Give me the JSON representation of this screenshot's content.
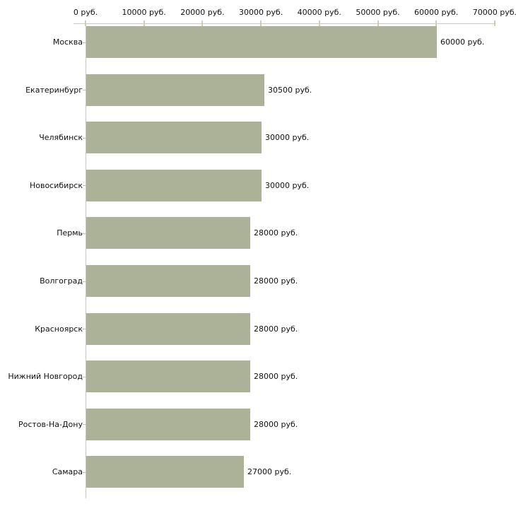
{
  "chart_data": {
    "type": "bar",
    "orientation": "horizontal",
    "title": "",
    "unit": "руб.",
    "categories": [
      "Москва",
      "Екатеринбург",
      "Челябинск",
      "Новосибирск",
      "Пермь",
      "Волгоград",
      "Красноярск",
      "Нижний Новгород",
      "Ростов-На-Дону",
      "Самара"
    ],
    "values": [
      60000,
      30500,
      30000,
      30000,
      28000,
      28000,
      28000,
      28000,
      28000,
      27000
    ],
    "value_labels": [
      "60000 руб.",
      "30500 руб.",
      "30000 руб.",
      "30000 руб.",
      "28000 руб.",
      "28000 руб.",
      "28000 руб.",
      "28000 руб.",
      "28000 руб.",
      "27000 руб."
    ],
    "x_ticks": [
      0,
      10000,
      20000,
      30000,
      40000,
      50000,
      60000,
      70000
    ],
    "x_tick_labels": [
      "0 руб.",
      "10000 руб.",
      "20000 руб.",
      "30000 руб.",
      "40000 руб.",
      "50000 руб.",
      "60000 руб.",
      "70000 руб."
    ],
    "xlim": [
      0,
      70000
    ],
    "grid": false,
    "legend": null,
    "colors": {
      "bar": "#abb298",
      "axis_line": "#c9c9c9",
      "x_tick": "#cfcfa6",
      "category_tick": "#c2c2a8",
      "text": "#111111",
      "background": "#ffffff"
    }
  }
}
